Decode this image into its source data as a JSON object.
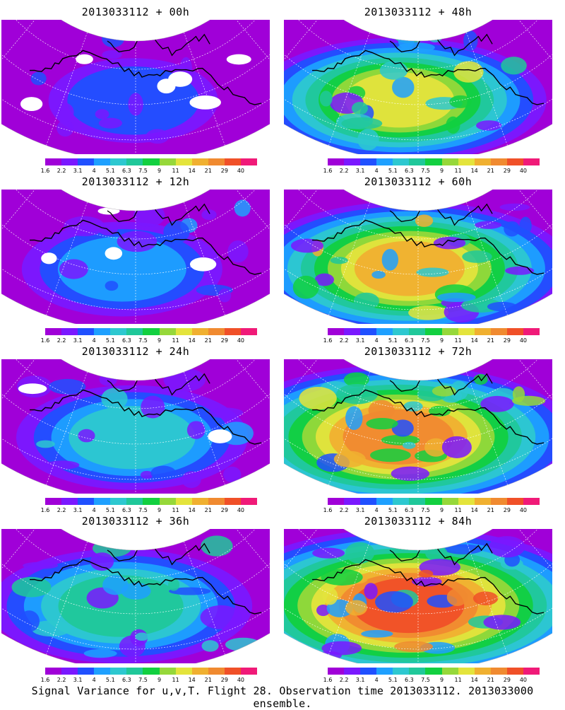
{
  "caption": "Signal Variance for u,v,T. Flight 28. Observation time 2013033112. 2013033000 ensemble.",
  "colorbar": {
    "labels": [
      "1.6",
      "2.2",
      "3.1",
      "4",
      "5.1",
      "6.3",
      "7.5",
      "9",
      "11",
      "14",
      "21",
      "29",
      "40"
    ],
    "colors": [
      "#a000d8",
      "#7a18ff",
      "#2050ff",
      "#1ea0ff",
      "#2dc8d0",
      "#20c89a",
      "#12d040",
      "#96d83a",
      "#e4e43c",
      "#f0b030",
      "#f08a30",
      "#f05028",
      "#f01a78"
    ]
  },
  "panels": [
    {
      "title": "2013033112 + 00h",
      "level": 0
    },
    {
      "title": "2013033112 + 48h",
      "level": 4
    },
    {
      "title": "2013033112 + 12h",
      "level": 1
    },
    {
      "title": "2013033112 + 60h",
      "level": 5
    },
    {
      "title": "2013033112 + 24h",
      "level": 2
    },
    {
      "title": "2013033112 + 72h",
      "level": 6
    },
    {
      "title": "2013033112 + 36h",
      "level": 3
    },
    {
      "title": "2013033112 + 84h",
      "level": 7
    }
  ]
}
